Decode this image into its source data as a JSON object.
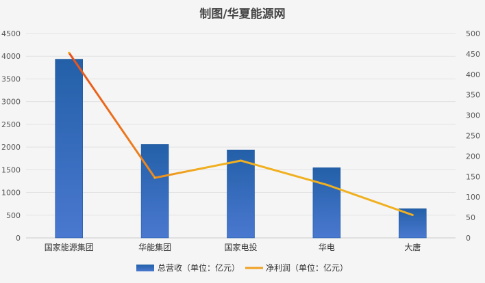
{
  "chart_data": {
    "type": "bar+line",
    "title": "制图/华夏能源网",
    "categories": [
      "国家能源集团",
      "华能集团",
      "国家电投",
      "华电",
      "大唐"
    ],
    "series": [
      {
        "name": "总营收（单位：亿元）",
        "type": "bar",
        "axis": "left",
        "values": [
          3935,
          2057,
          1937,
          1545,
          643
        ],
        "color": "#3a66b8"
      },
      {
        "name": "净利润（单位：亿元）",
        "type": "line",
        "axis": "right",
        "values": [
          453,
          147,
          189,
          130,
          56
        ],
        "color": "#f0b020"
      }
    ],
    "y_left": {
      "range": [
        0,
        4500
      ],
      "ticks": [
        0,
        500,
        1000,
        1500,
        2000,
        2500,
        3000,
        3500,
        4000,
        4500
      ]
    },
    "y_right": {
      "range": [
        0,
        500
      ],
      "ticks": [
        0,
        50,
        100,
        150,
        200,
        250,
        300,
        350,
        400,
        450,
        500
      ]
    },
    "grid": true,
    "legend": "bottom"
  }
}
